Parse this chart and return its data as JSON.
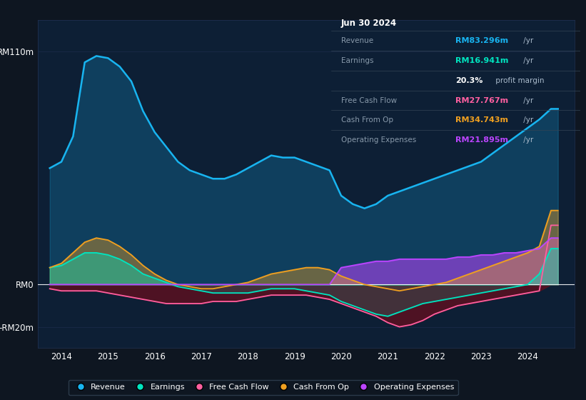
{
  "background_color": "#0e1621",
  "plot_bg_color": "#0d1f35",
  "info_bg_color": "#050d14",
  "ylim": [
    -30,
    125
  ],
  "xlim_start": 2013.5,
  "xlim_end": 2025.0,
  "xtick_years": [
    2014,
    2015,
    2016,
    2017,
    2018,
    2019,
    2020,
    2021,
    2022,
    2023,
    2024
  ],
  "colors": {
    "revenue": "#18b4f0",
    "earnings": "#00e5c0",
    "free_cash_flow": "#ff5fa0",
    "cash_from_op": "#f0a020",
    "operating_expenses": "#bb44ff",
    "fcf_neg_fill": "#5a1020"
  },
  "legend": [
    {
      "label": "Revenue",
      "color": "#18b4f0"
    },
    {
      "label": "Earnings",
      "color": "#00e5c0"
    },
    {
      "label": "Free Cash Flow",
      "color": "#ff5fa0"
    },
    {
      "label": "Cash From Op",
      "color": "#f0a020"
    },
    {
      "label": "Operating Expenses",
      "color": "#bb44ff"
    }
  ],
  "info_box": {
    "title": "Jun 30 2024",
    "rows": [
      {
        "label": "Revenue",
        "value": "RM83.296m",
        "suffix": " /yr",
        "value_color": "#18b4f0"
      },
      {
        "label": "Earnings",
        "value": "RM16.941m",
        "suffix": " /yr",
        "value_color": "#00e5c0"
      },
      {
        "label": "",
        "value": "20.3%",
        "suffix": " profit margin",
        "value_color": "#ffffff"
      },
      {
        "label": "Free Cash Flow",
        "value": "RM27.767m",
        "suffix": " /yr",
        "value_color": "#ff5fa0"
      },
      {
        "label": "Cash From Op",
        "value": "RM34.743m",
        "suffix": " /yr",
        "value_color": "#f0a020"
      },
      {
        "label": "Operating Expenses",
        "value": "RM21.895m",
        "suffix": " /yr",
        "value_color": "#bb44ff"
      }
    ]
  }
}
